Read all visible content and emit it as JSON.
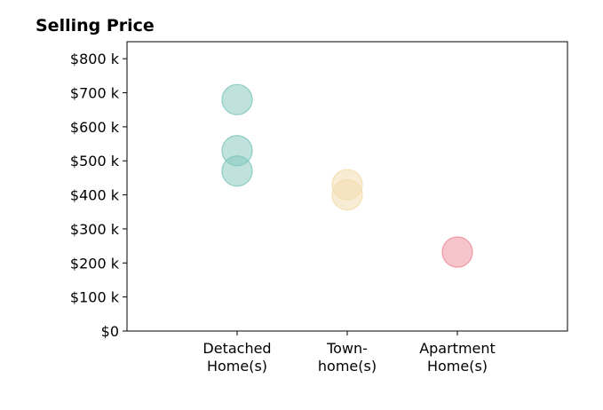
{
  "chart_data": {
    "type": "scatter",
    "title": "Selling Price",
    "xlabel": "",
    "ylabel": "",
    "categories": [
      [
        "Detached",
        "Home(s)"
      ],
      [
        "Town-",
        "home(s)"
      ],
      [
        "Apartment",
        "Home(s)"
      ]
    ],
    "xlim": [
      -1,
      3
    ],
    "ylim": [
      0,
      850
    ],
    "yticks": [
      0,
      100,
      200,
      300,
      400,
      500,
      600,
      700,
      800
    ],
    "ytick_labels": [
      "$0",
      "$100 k",
      "$200 k",
      "$300 k",
      "$400 k",
      "$500 k",
      "$600 k",
      "$700 k",
      "$800 k"
    ],
    "grid": false,
    "legend": "none",
    "series": [
      {
        "category": 0,
        "color": "#7fc6bc",
        "values": [
          680,
          530,
          470
        ]
      },
      {
        "category": 1,
        "color": "#f2dcaa",
        "values": [
          430,
          400
        ]
      },
      {
        "category": 2,
        "color": "#ee8c98",
        "values": [
          232
        ]
      }
    ]
  }
}
